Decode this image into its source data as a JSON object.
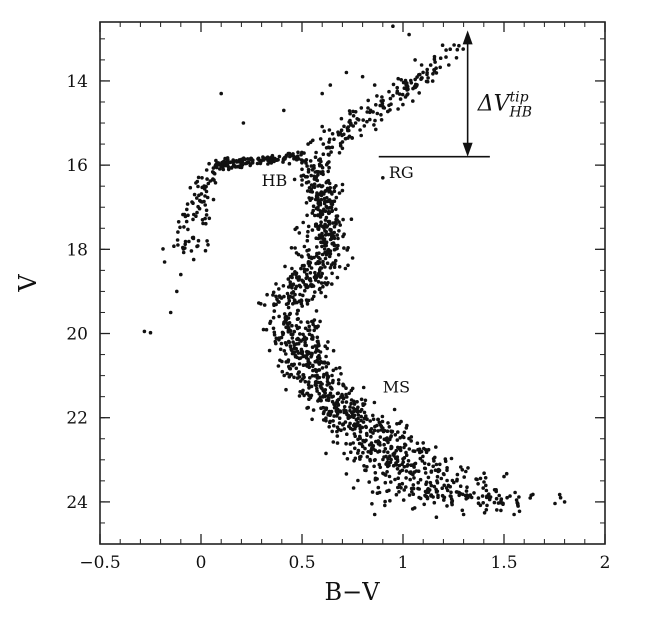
{
  "chart_data": {
    "type": "scatter",
    "title": "",
    "xlabel": "B−V",
    "ylabel": "V",
    "xlim": [
      -0.5,
      2.0
    ],
    "ylim": [
      25.0,
      12.6
    ],
    "y_inverted": true,
    "grid": false,
    "x_ticks": [
      {
        "value": -0.5,
        "label": "−0.5"
      },
      {
        "value": 0,
        "label": "0"
      },
      {
        "value": 0.5,
        "label": "0.5"
      },
      {
        "value": 1.0,
        "label": "1"
      },
      {
        "value": 1.5,
        "label": "1.5"
      },
      {
        "value": 2.0,
        "label": "2"
      }
    ],
    "y_ticks": [
      {
        "value": 14,
        "label": "14"
      },
      {
        "value": 16,
        "label": "16"
      },
      {
        "value": 18,
        "label": "18"
      },
      {
        "value": 20,
        "label": "20"
      },
      {
        "value": 22,
        "label": "22"
      },
      {
        "value": 24,
        "label": "24"
      }
    ],
    "annotations": [
      {
        "text": "HB",
        "x": 0.3,
        "y": 16.5
      },
      {
        "text": "RG",
        "x": 0.93,
        "y": 16.3
      },
      {
        "text": "MS",
        "x": 0.9,
        "y": 21.4
      }
    ],
    "delta_label": {
      "main": "ΔV",
      "sup": "tip",
      "sub": "HB",
      "x": 1.37,
      "y": 14.7
    },
    "delta_arrow": {
      "x": 1.32,
      "y_top": 12.8,
      "y_bottom": 15.8
    },
    "hb_level_line": {
      "x_start": 0.88,
      "x_end": 1.43,
      "y": 15.8
    },
    "sequences": [
      {
        "name": "MS",
        "ridge": [
          [
            0.57,
            16.0
          ],
          [
            0.62,
            17.0
          ],
          [
            0.63,
            17.8
          ],
          [
            0.57,
            18.4
          ],
          [
            0.48,
            18.9
          ],
          [
            0.44,
            19.4
          ],
          [
            0.46,
            20.0
          ],
          [
            0.52,
            20.6
          ],
          [
            0.6,
            21.3
          ],
          [
            0.7,
            21.8
          ],
          [
            0.82,
            22.3
          ],
          [
            0.93,
            22.8
          ],
          [
            1.05,
            23.2
          ],
          [
            1.15,
            23.6
          ],
          [
            1.25,
            23.9
          ],
          [
            1.35,
            24.0
          ]
        ],
        "width": [
          0.04,
          0.05,
          0.06,
          0.07,
          0.07,
          0.06,
          0.06,
          0.07,
          0.07,
          0.08,
          0.09,
          0.11,
          0.14,
          0.17,
          0.2,
          0.22
        ],
        "vspread": 0.3,
        "count": 1300
      },
      {
        "name": "RG",
        "ridge": [
          [
            0.57,
            16.0
          ],
          [
            0.68,
            15.4
          ],
          [
            0.82,
            14.8
          ],
          [
            0.98,
            14.3
          ],
          [
            1.12,
            13.8
          ],
          [
            1.25,
            13.2
          ]
        ],
        "width": [
          0.05,
          0.05,
          0.06,
          0.06,
          0.05,
          0.05
        ],
        "vspread": 0.18,
        "count": 170
      },
      {
        "name": "HB",
        "ridge": [
          [
            0.08,
            16.02
          ],
          [
            0.18,
            15.93
          ],
          [
            0.28,
            15.88
          ],
          [
            0.38,
            15.82
          ],
          [
            0.5,
            15.78
          ]
        ],
        "width": [
          0.015,
          0.015,
          0.015,
          0.015,
          0.015
        ],
        "vspread": 0.12,
        "count": 140
      },
      {
        "name": "BHB",
        "ridge": [
          [
            0.08,
            16.0
          ],
          [
            0.02,
            16.5
          ],
          [
            -0.02,
            17.0
          ],
          [
            -0.04,
            17.5
          ],
          [
            -0.06,
            18.2
          ]
        ],
        "width": [
          0.02,
          0.03,
          0.04,
          0.05,
          0.05
        ],
        "vspread": 0.2,
        "count": 90
      }
    ],
    "sparse_points": [
      [
        -0.28,
        19.95
      ],
      [
        -0.25,
        19.98
      ],
      [
        -0.15,
        19.5
      ],
      [
        -0.12,
        19.0
      ],
      [
        -0.1,
        18.6
      ],
      [
        -0.18,
        18.3
      ],
      [
        0.1,
        14.3
      ],
      [
        0.21,
        15.0
      ],
      [
        0.41,
        14.7
      ],
      [
        0.6,
        14.3
      ],
      [
        0.64,
        14.1
      ],
      [
        0.72,
        13.8
      ],
      [
        0.8,
        13.9
      ],
      [
        0.86,
        14.1
      ],
      [
        0.53,
        15.5
      ],
      [
        0.57,
        15.7
      ],
      [
        0.74,
        15.0
      ],
      [
        0.5,
        16.1
      ],
      [
        0.95,
        12.7
      ],
      [
        1.78,
        23.9
      ],
      [
        1.8,
        24.0
      ],
      [
        1.55,
        24.3
      ],
      [
        1.5,
        23.4
      ],
      [
        1.57,
        24.1
      ],
      [
        0.86,
        24.3
      ],
      [
        1.3,
        24.3
      ],
      [
        0.9,
        16.3
      ],
      [
        1.03,
        12.9
      ],
      [
        1.06,
        13.5
      ],
      [
        0.7,
        15.6
      ]
    ],
    "point_color": "#111111"
  }
}
